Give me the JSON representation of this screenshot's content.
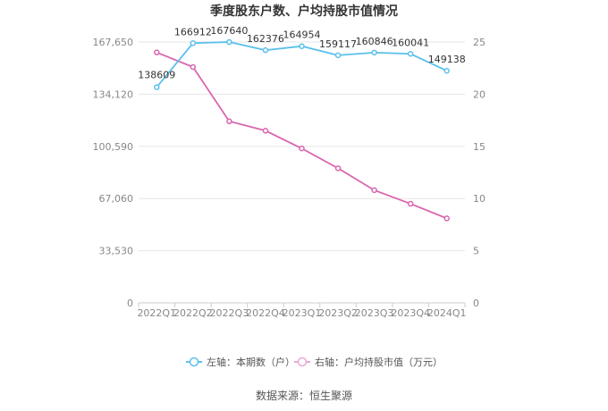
{
  "chart_data": {
    "type": "line",
    "title": "季度股东户数、户均持股市值情况",
    "categories": [
      "2022Q1",
      "2022Q2",
      "2022Q3",
      "2022Q4",
      "2023Q1",
      "2023Q2",
      "2023Q3",
      "2023Q4",
      "2024Q1"
    ],
    "left_axis": {
      "ticks": [
        "0",
        "33,530",
        "67,060",
        "100,590",
        "134,120",
        "167,650"
      ],
      "ylim": [
        0,
        167650
      ]
    },
    "right_axis": {
      "ticks": [
        "0",
        "5",
        "10",
        "15",
        "20",
        "25"
      ],
      "ylim": [
        0,
        25
      ]
    },
    "series": [
      {
        "name": "左轴：本期数（户）",
        "axis": "left",
        "color": "#5bc0eb",
        "values": [
          138609,
          166912,
          167640,
          162376,
          164954,
          159117,
          160846,
          160041,
          149138
        ],
        "labels": [
          "138609",
          "166912",
          "167640",
          "162376",
          "164954",
          "159117",
          "160846",
          "160041",
          "149138"
        ]
      },
      {
        "name": "右轴：户均持股市值（万元）",
        "axis": "right",
        "color": "#d966b0",
        "values": [
          24.0,
          22.6,
          17.4,
          16.5,
          14.8,
          12.9,
          10.8,
          9.5,
          8.1
        ]
      }
    ],
    "grid": true,
    "legend_position": "bottom"
  },
  "source_text": "数据来源：恒生聚源"
}
